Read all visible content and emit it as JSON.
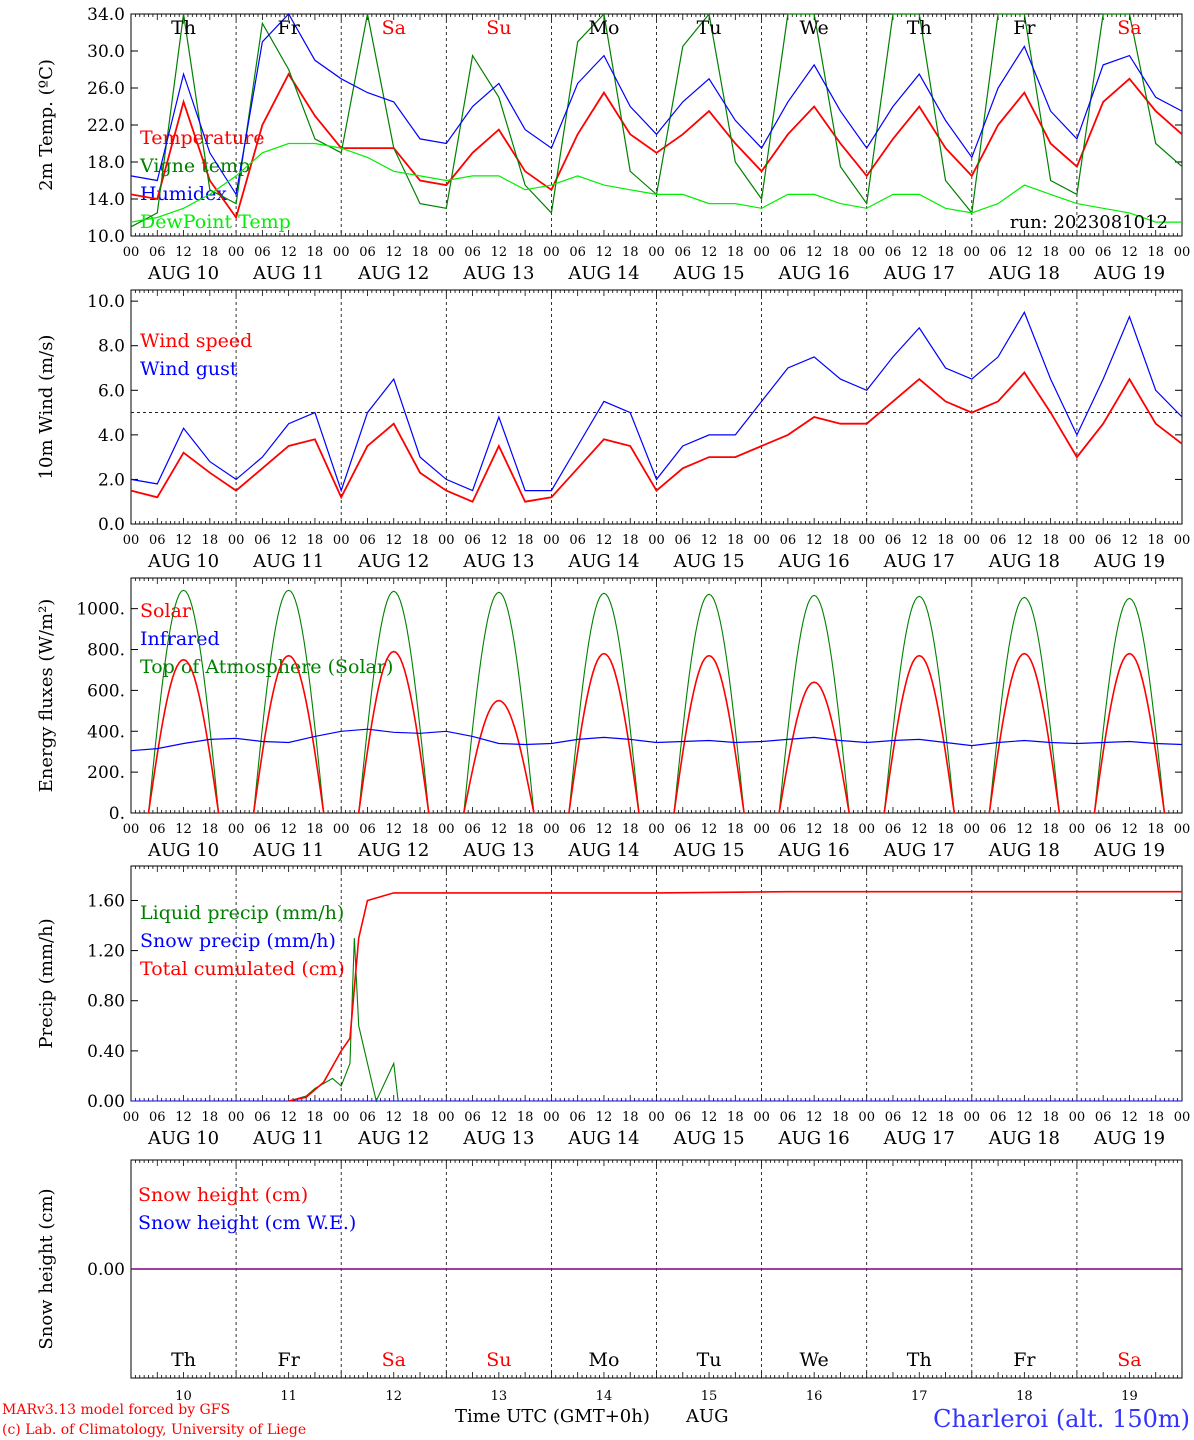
{
  "run_label": "run: 2023081012",
  "footer": {
    "credit_line1": "MARv3.13 model forced by GFS",
    "credit_line2": "(c) Lab. of Climatology, University of Liege",
    "axis_title": "Time UTC (GMT+0h)",
    "month": "AUG",
    "station": "Charleroi (alt. 150m)"
  },
  "hour_labels": [
    "00",
    "06",
    "12",
    "18"
  ],
  "date_labels": [
    "AUG 10",
    "AUG 11",
    "AUG 12",
    "AUG 13",
    "AUG 14",
    "AUG 15",
    "AUG 16",
    "AUG 17",
    "AUG 18",
    "AUG 19"
  ],
  "weekdays": [
    "Th",
    "Fr",
    "Sa",
    "Su",
    "Mo",
    "Tu",
    "We",
    "Th",
    "Fr",
    "Sa"
  ],
  "weekend_flags": [
    false,
    false,
    true,
    true,
    false,
    false,
    false,
    false,
    false,
    true
  ],
  "day_numbers": [
    "10",
    "11",
    "12",
    "13",
    "14",
    "15",
    "16",
    "17",
    "18",
    "19"
  ],
  "colors": {
    "red": "#ff0000",
    "blue": "#0000ff",
    "green": "#008000",
    "lightgreen": "#00ee00",
    "purple": "#800080",
    "station": "#3333ff"
  },
  "chart_data": [
    {
      "type": "line",
      "ylabel": "2m Temp. (ºC)",
      "ylim": [
        10,
        34
      ],
      "ytick_labels": [
        "10.0",
        "14.0",
        "18.0",
        "22.0",
        "26.0",
        "30.0",
        "34.0"
      ],
      "x_hours_since_Aug10_00UTC_step6": [
        0,
        6,
        12,
        18,
        24,
        30,
        36,
        42,
        48,
        54,
        60,
        66,
        72,
        78,
        84,
        90,
        96,
        102,
        108,
        114,
        120,
        126,
        132,
        138,
        144,
        150,
        156,
        162,
        168,
        174,
        180,
        186,
        192,
        198,
        204,
        210,
        216,
        222,
        228,
        234,
        240
      ],
      "series": [
        {
          "name": "Temperature",
          "color": "red",
          "values": [
            14.5,
            14.0,
            24.5,
            16.0,
            12.0,
            22.0,
            27.5,
            23.0,
            19.5,
            19.5,
            19.5,
            16.0,
            15.5,
            19.0,
            21.5,
            17.0,
            15.0,
            21.0,
            25.5,
            21.0,
            19.0,
            21.0,
            23.5,
            20.0,
            17.0,
            21.0,
            24.0,
            20.0,
            16.5,
            20.5,
            24.0,
            19.5,
            16.5,
            22.0,
            25.5,
            20.0,
            17.5,
            24.5,
            27.0,
            23.5,
            21.0
          ]
        },
        {
          "name": "Vigne temp",
          "color": "green",
          "values": [
            11.0,
            12.5,
            34.5,
            15.0,
            13.5,
            33.0,
            28.0,
            20.5,
            19.0,
            34.0,
            19.5,
            13.5,
            13.0,
            29.5,
            25.0,
            15.5,
            12.5,
            31.0,
            34.0,
            17.0,
            14.5,
            30.5,
            34.0,
            18.0,
            14.0,
            34.5,
            34.5,
            17.5,
            13.5,
            34.5,
            34.5,
            16.0,
            12.5,
            34.5,
            34.5,
            16.0,
            14.5,
            34.5,
            34.5,
            20.0,
            17.5
          ]
        },
        {
          "name": "Humidex",
          "color": "blue",
          "values": [
            16.5,
            16.0,
            27.5,
            19.0,
            14.5,
            31.0,
            34.5,
            29.0,
            27.0,
            25.5,
            24.5,
            20.5,
            20.0,
            24.0,
            26.5,
            21.5,
            19.5,
            26.5,
            29.5,
            24.0,
            21.0,
            24.5,
            27.0,
            22.5,
            19.5,
            24.5,
            28.5,
            23.5,
            19.5,
            24.0,
            27.5,
            22.5,
            18.5,
            26.0,
            30.5,
            23.5,
            20.5,
            28.5,
            29.5,
            25.0,
            23.5
          ]
        },
        {
          "name": "DewPoint Temp",
          "color": "lightgreen",
          "values": [
            11.5,
            12.0,
            13.0,
            14.5,
            16.5,
            19.0,
            20.0,
            20.0,
            19.5,
            18.5,
            17.0,
            16.5,
            16.0,
            16.5,
            16.5,
            15.0,
            15.5,
            16.5,
            15.5,
            15.0,
            14.5,
            14.5,
            13.5,
            13.5,
            13.0,
            14.5,
            14.5,
            13.5,
            13.0,
            14.5,
            14.5,
            13.0,
            12.5,
            13.5,
            15.5,
            14.5,
            13.5,
            13.0,
            12.5,
            11.5,
            11.5
          ]
        }
      ],
      "legend_placement": "left"
    },
    {
      "type": "line",
      "ylabel": "10m Wind (m/s)",
      "ylim": [
        0,
        10
      ],
      "ytick_labels": [
        "0.0",
        "2.0",
        "4.0",
        "6.0",
        "8.0",
        "10.0"
      ],
      "reference_line": 5.0,
      "x_hours_since_Aug10_00UTC_step6": [
        0,
        6,
        12,
        18,
        24,
        30,
        36,
        42,
        48,
        54,
        60,
        66,
        72,
        78,
        84,
        90,
        96,
        102,
        108,
        114,
        120,
        126,
        132,
        138,
        144,
        150,
        156,
        162,
        168,
        174,
        180,
        186,
        192,
        198,
        204,
        210,
        216,
        222,
        228,
        234,
        240
      ],
      "series": [
        {
          "name": "Wind speed",
          "color": "red",
          "values": [
            1.5,
            1.2,
            3.2,
            2.3,
            1.5,
            2.5,
            3.5,
            3.8,
            1.2,
            3.5,
            4.5,
            2.3,
            1.5,
            1.0,
            3.5,
            1.0,
            1.2,
            2.5,
            3.8,
            3.5,
            1.5,
            2.5,
            3.0,
            3.0,
            3.5,
            4.0,
            4.8,
            4.5,
            4.5,
            5.5,
            6.5,
            5.5,
            5.0,
            5.5,
            6.8,
            5.0,
            3.0,
            4.5,
            6.5,
            4.5,
            3.6
          ]
        },
        {
          "name": "Wind gust",
          "color": "blue",
          "values": [
            2.0,
            1.8,
            4.3,
            2.8,
            2.0,
            3.0,
            4.5,
            5.0,
            1.5,
            5.0,
            6.5,
            3.0,
            2.0,
            1.5,
            4.8,
            1.5,
            1.5,
            3.5,
            5.5,
            5.0,
            2.0,
            3.5,
            4.0,
            4.0,
            5.5,
            7.0,
            7.5,
            6.5,
            6.0,
            7.5,
            8.8,
            7.0,
            6.5,
            7.5,
            9.5,
            6.5,
            4.0,
            6.5,
            9.3,
            6.0,
            4.8
          ]
        }
      ],
      "legend_placement": "left"
    },
    {
      "type": "line",
      "ylabel": "Energy fluxes (W/m²)",
      "ylim": [
        0,
        1100
      ],
      "ytick_labels": [
        "0.",
        "200.",
        "400.",
        "600.",
        "800.",
        "1000."
      ],
      "series": [
        {
          "name": "Solar",
          "color": "red",
          "daily_peak_values": [
            750,
            770,
            790,
            550,
            780,
            770,
            640,
            770,
            780,
            780
          ]
        },
        {
          "name": "Infrared",
          "color": "blue",
          "values": [
            305,
            315,
            340,
            360,
            365,
            350,
            345,
            375,
            400,
            410,
            395,
            390,
            400,
            375,
            340,
            335,
            340,
            360,
            370,
            360,
            345,
            350,
            355,
            345,
            350,
            360,
            370,
            355,
            345,
            355,
            360,
            345,
            330,
            345,
            355,
            345,
            340,
            345,
            350,
            340,
            335
          ]
        },
        {
          "name": "Top of Atmosphere (Solar)",
          "color": "green",
          "daily_peak_values": [
            1090,
            1090,
            1085,
            1080,
            1075,
            1070,
            1065,
            1060,
            1055,
            1050
          ]
        }
      ],
      "legend_placement": "left"
    },
    {
      "type": "line",
      "ylabel": "Precip (mm/h)",
      "ylim": [
        0,
        1.8
      ],
      "ytick_labels": [
        "0.00",
        "0.40",
        "0.80",
        "1.20",
        "1.60"
      ],
      "series": [
        {
          "name": "Liquid precip (mm/h)",
          "color": "green",
          "points": [
            [
              24,
              0
            ],
            [
              36,
              0
            ],
            [
              40,
              0.04
            ],
            [
              42,
              0.1
            ],
            [
              44,
              0.14
            ],
            [
              46,
              0.18
            ],
            [
              48,
              0.12
            ],
            [
              50,
              0.3
            ],
            [
              51,
              1.3
            ],
            [
              52,
              0.6
            ],
            [
              54,
              0.3
            ],
            [
              56,
              0.0
            ],
            [
              60,
              0.3
            ],
            [
              61,
              0
            ],
            [
              240,
              0
            ]
          ]
        },
        {
          "name": "Snow precip (mm/h)",
          "color": "blue",
          "points": [
            [
              0,
              0
            ],
            [
              240,
              0
            ]
          ]
        },
        {
          "name": "Total cumulated (cm)",
          "color": "red",
          "points": [
            [
              36,
              0
            ],
            [
              40,
              0.03
            ],
            [
              44,
              0.15
            ],
            [
              48,
              0.4
            ],
            [
              50,
              0.5
            ],
            [
              52,
              1.3
            ],
            [
              54,
              1.6
            ],
            [
              60,
              1.66
            ],
            [
              120,
              1.66
            ],
            [
              150,
              1.67
            ],
            [
              240,
              1.67
            ]
          ]
        }
      ],
      "legend_placement": "left"
    },
    {
      "type": "line",
      "ylabel": "Snow height (cm)",
      "ytick_labels": [
        "0.00"
      ],
      "series": [
        {
          "name": "Snow height (cm)",
          "color": "red",
          "values": [
            0,
            0
          ]
        },
        {
          "name": "Snow height (cm W.E.)",
          "color": "blue",
          "values": [
            0,
            0
          ]
        }
      ],
      "legend_placement": "left"
    }
  ]
}
